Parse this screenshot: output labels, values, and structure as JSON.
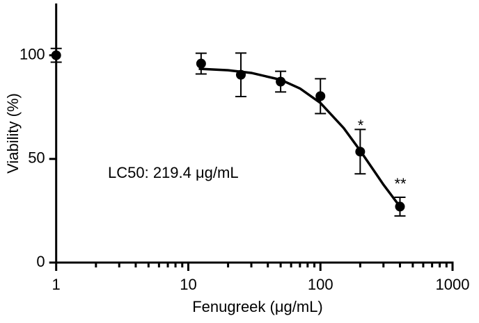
{
  "chart_data": {
    "type": "scatter",
    "xlabel": "Fenugreek (μg/mL)",
    "ylabel": "Viability (%)",
    "xscale": "log",
    "xlim": [
      0.9,
      1000
    ],
    "xticks": [
      1,
      10,
      100,
      1000
    ],
    "xminorticks": [
      2,
      3,
      4,
      5,
      6,
      7,
      8,
      9,
      20,
      30,
      40,
      50,
      60,
      70,
      80,
      90,
      200,
      300,
      400,
      500,
      600,
      700,
      800,
      900
    ],
    "ylim": [
      0,
      125
    ],
    "yticks": [
      0,
      50,
      100
    ],
    "series": [
      {
        "type": "scatter",
        "color": "#000000",
        "x": [
          1,
          12.5,
          25,
          50,
          100,
          200,
          400
        ],
        "values": [
          100,
          96,
          90.6,
          87.3,
          80.3,
          53.5,
          27
        ],
        "errors": [
          3.3,
          5,
          10.5,
          5,
          8.4,
          10.7,
          4.5
        ]
      },
      {
        "type": "line",
        "color": "#000000",
        "x": [
          12,
          20,
          30,
          50,
          70,
          100,
          150,
          200,
          250,
          300,
          400
        ],
        "values": [
          93.5,
          92.8,
          91.5,
          88.2,
          84,
          77,
          64.9,
          54,
          45,
          37.6,
          27
        ]
      }
    ],
    "annotations": [
      "LC50: 219.4 μg/mL",
      "*",
      "**"
    ]
  }
}
